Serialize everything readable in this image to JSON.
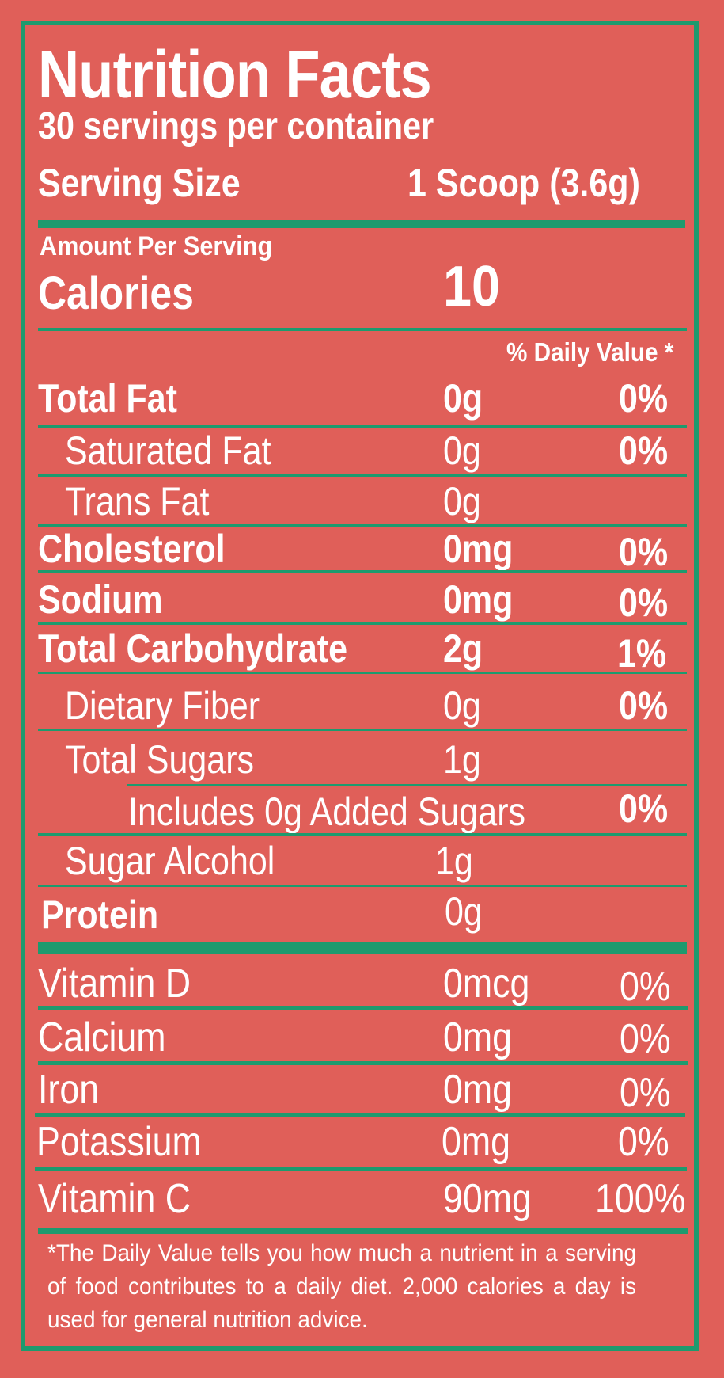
{
  "label": {
    "title": "Nutrition Facts",
    "servings_per_container": "30 servings per container",
    "serving_size_label": "Serving Size",
    "serving_size_value": "1 Scoop (3.6g)",
    "amount_per_serving": "Amount Per Serving",
    "calories_label": "Calories",
    "calories_value": "10",
    "daily_value_header": "% Daily Value *"
  },
  "nutrients": [
    {
      "label": "Total Fat",
      "amount": "0g",
      "dv": "0%"
    },
    {
      "label": "Saturated Fat",
      "amount": "0g",
      "dv": "0%"
    },
    {
      "label": "Trans Fat",
      "amount": "0g",
      "dv": ""
    },
    {
      "label": "Cholesterol",
      "amount": "0mg",
      "dv": "0%"
    },
    {
      "label": "Sodium",
      "amount": "0mg",
      "dv": "0%"
    },
    {
      "label": "Total Carbohydrate",
      "amount": "2g",
      "dv": "1%"
    },
    {
      "label": "Dietary Fiber",
      "amount": "0g",
      "dv": "0%"
    },
    {
      "label": "Total Sugars",
      "amount": "1g",
      "dv": ""
    },
    {
      "label": "Includes 0g Added Sugars",
      "amount": "",
      "dv": "0%"
    },
    {
      "label": "Sugar Alcohol",
      "amount": "1g",
      "dv": ""
    },
    {
      "label": "Protein",
      "amount": "0g",
      "dv": ""
    }
  ],
  "vitamins": [
    {
      "label": "Vitamin D",
      "amount": "0mcg",
      "dv": "0%"
    },
    {
      "label": "Calcium",
      "amount": "0mg",
      "dv": "0%"
    },
    {
      "label": "Iron",
      "amount": "0mg",
      "dv": "0%"
    },
    {
      "label": "Potassium",
      "amount": "0mg",
      "dv": "0%"
    },
    {
      "label": "Vitamin C",
      "amount": "90mg",
      "dv": "100%"
    }
  ],
  "footnote": "*The Daily Value tells you how much a nutrient in a serving of food contributes to a daily diet. 2,000 calories a day is used for general nutrition advice.",
  "colors": {
    "background": "#e05f59",
    "accent": "#1e9a6e",
    "text": "#ffffff"
  }
}
